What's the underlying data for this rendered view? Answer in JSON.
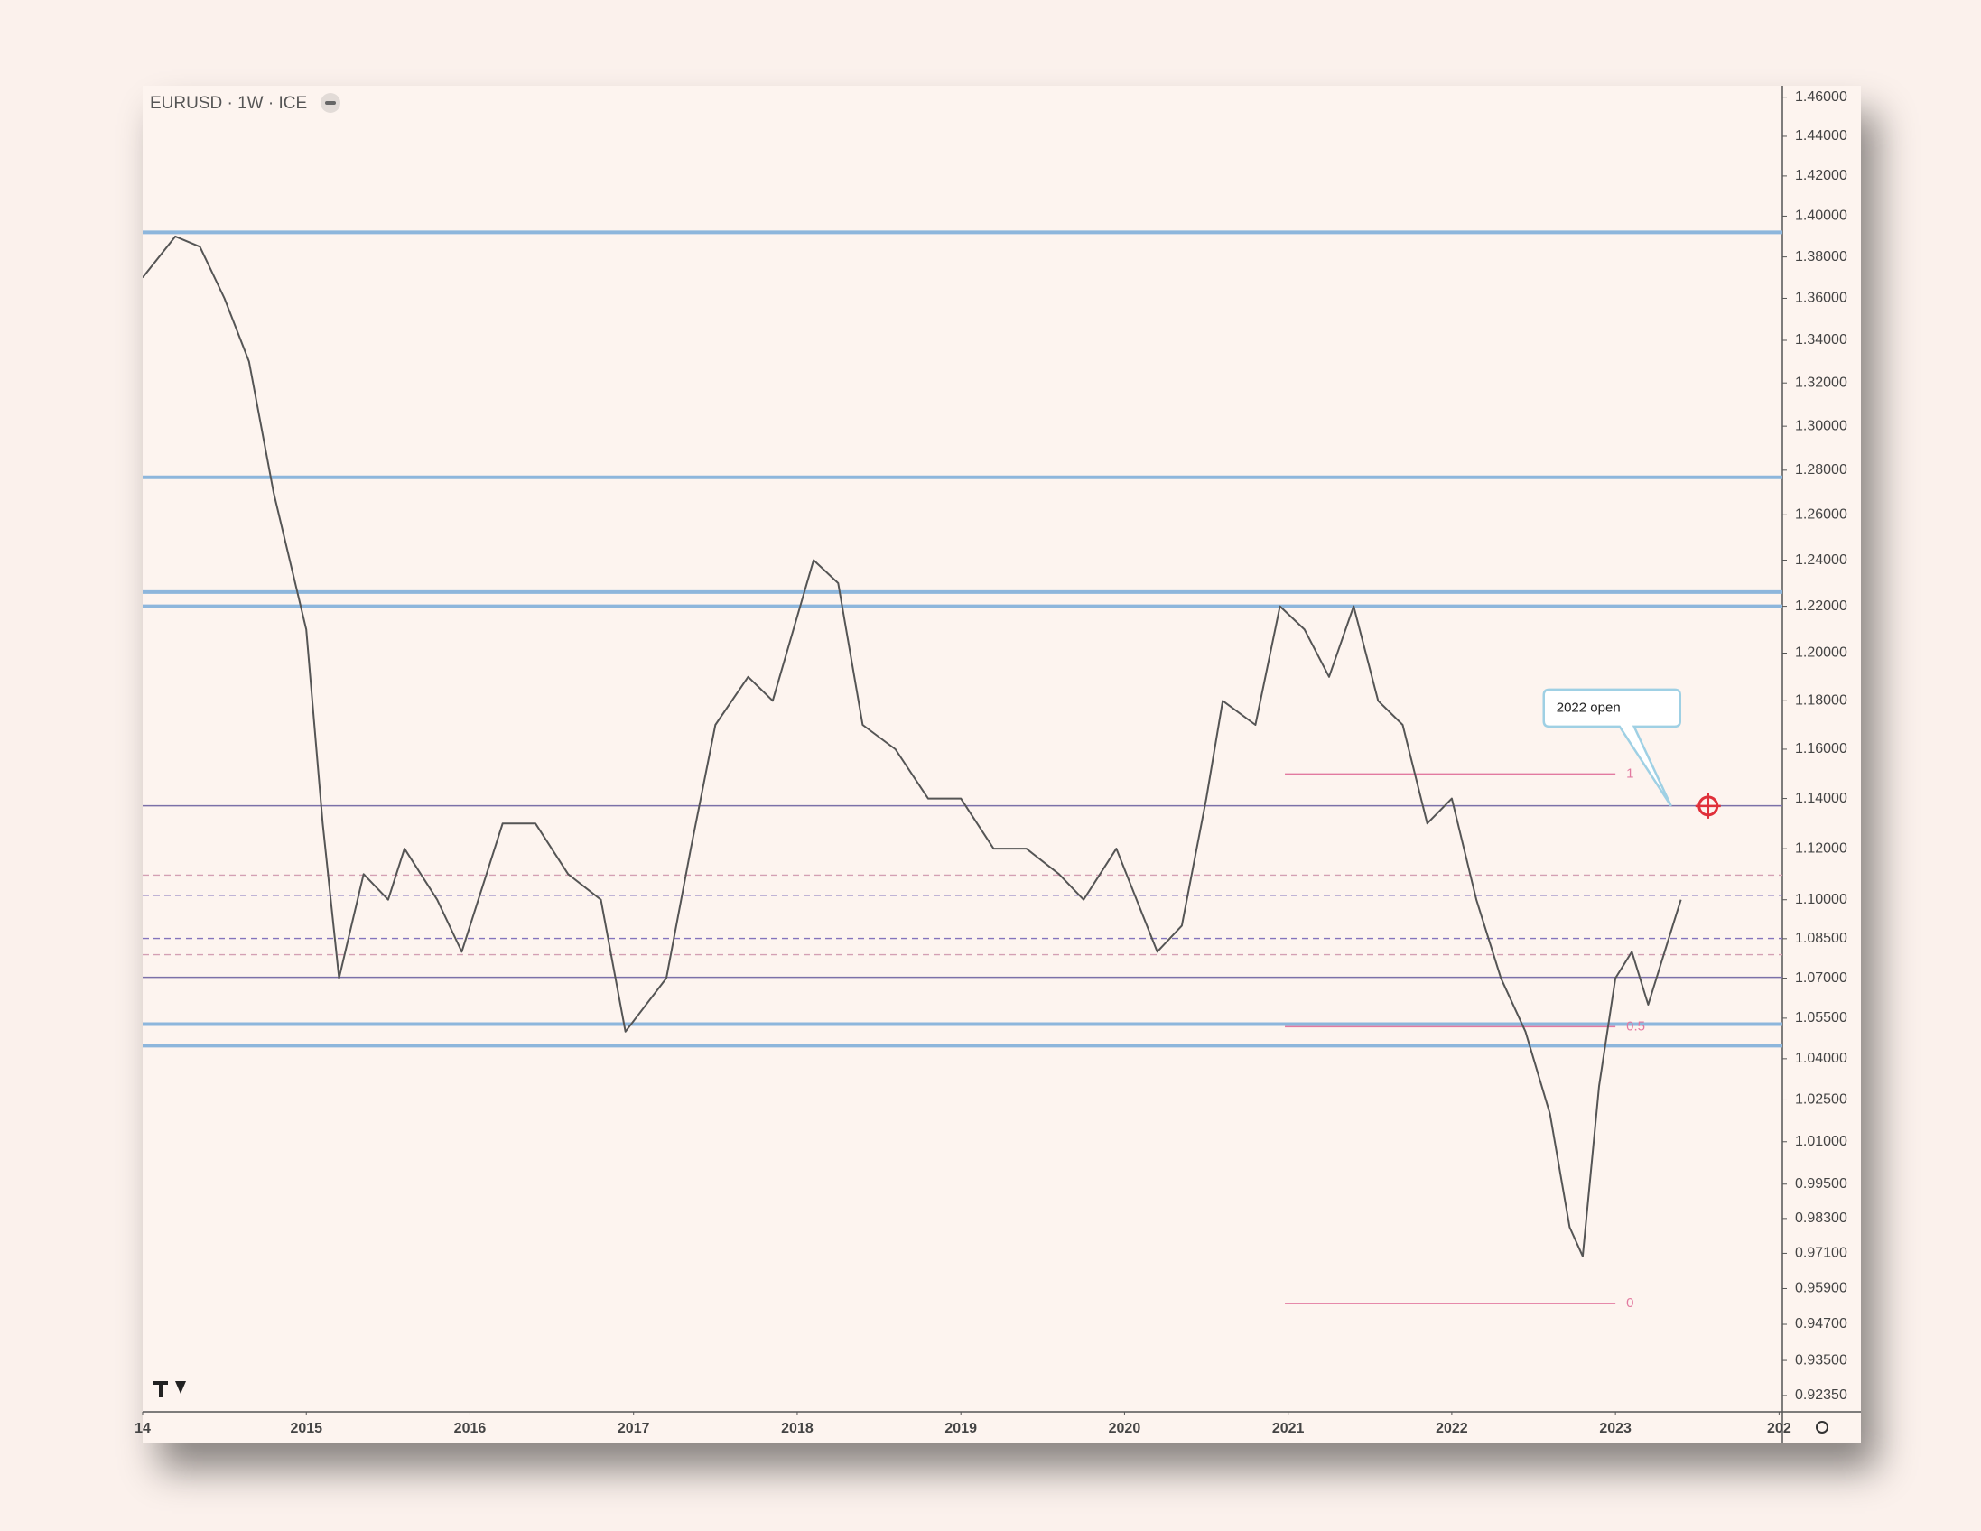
{
  "chart_data": {
    "type": "line",
    "title": "EURUSD · 1W · ICE",
    "log": true,
    "xlim": [
      2014.0,
      2024.02
    ],
    "xticks": [
      {
        "value": 2014,
        "label": "14"
      },
      2015,
      2016,
      2017,
      2018,
      2019,
      2020,
      2021,
      2022,
      2023,
      {
        "value": 2024,
        "label": "202"
      }
    ],
    "ylim": [
      0.9182,
      1.4659
    ],
    "yticks": [
      {
        "value": 1.46,
        "label": "1.46000"
      },
      {
        "value": 1.44,
        "label": "1.44000"
      },
      {
        "value": 1.42,
        "label": "1.42000"
      },
      {
        "value": 1.4,
        "label": "1.40000"
      },
      {
        "value": 1.38,
        "label": "1.38000"
      },
      {
        "value": 1.36,
        "label": "1.36000"
      },
      {
        "value": 1.34,
        "label": "1.34000"
      },
      {
        "value": 1.32,
        "label": "1.32000"
      },
      {
        "value": 1.3,
        "label": "1.30000"
      },
      {
        "value": 1.28,
        "label": "1.28000"
      },
      {
        "value": 1.26,
        "label": "1.26000"
      },
      {
        "value": 1.24,
        "label": "1.24000"
      },
      {
        "value": 1.22,
        "label": "1.22000"
      },
      {
        "value": 1.2,
        "label": "1.20000"
      },
      {
        "value": 1.18,
        "label": "1.18000"
      },
      {
        "value": 1.16,
        "label": "1.16000"
      },
      {
        "value": 1.14,
        "label": "1.14000"
      },
      {
        "value": 1.12,
        "label": "1.12000"
      },
      {
        "value": 1.1,
        "label": "1.10000"
      },
      {
        "value": 1.085,
        "label": "1.08500"
      },
      {
        "value": 1.07,
        "label": "1.07000"
      },
      {
        "value": 1.055,
        "label": "1.05500"
      },
      {
        "value": 1.04,
        "label": "1.04000"
      },
      {
        "value": 1.025,
        "label": "1.02500"
      },
      {
        "value": 1.01,
        "label": "1.01000"
      },
      {
        "value": 0.995,
        "label": "0.99500"
      },
      {
        "value": 0.983,
        "label": "0.98300"
      },
      {
        "value": 0.971,
        "label": "0.97100"
      },
      {
        "value": 0.959,
        "label": "0.95900"
      },
      {
        "value": 0.947,
        "label": "0.94700"
      },
      {
        "value": 0.935,
        "label": "0.93500"
      },
      {
        "value": 0.9235,
        "label": "0.92350"
      }
    ],
    "x": [
      2014.0,
      2014.2,
      2014.35,
      2014.5,
      2014.65,
      2014.8,
      2015.0,
      2015.1,
      2015.2,
      2015.35,
      2015.5,
      2015.6,
      2015.8,
      2015.95,
      2016.2,
      2016.4,
      2016.6,
      2016.8,
      2016.95,
      2017.2,
      2017.35,
      2017.5,
      2017.7,
      2017.85,
      2018.1,
      2018.25,
      2018.4,
      2018.6,
      2018.8,
      2019.0,
      2019.2,
      2019.4,
      2019.6,
      2019.75,
      2019.95,
      2020.2,
      2020.35,
      2020.5,
      2020.6,
      2020.8,
      2020.95,
      2021.1,
      2021.25,
      2021.4,
      2021.55,
      2021.7,
      2021.85,
      2022.0,
      2022.15,
      2022.3,
      2022.45,
      2022.6,
      2022.72,
      2022.8,
      2022.9,
      2023.0,
      2023.1,
      2023.2,
      2023.35,
      2023.4
    ],
    "series": [
      {
        "color": "#555555",
        "values": [
          1.37,
          1.39,
          1.385,
          1.36,
          1.33,
          1.27,
          1.21,
          1.13,
          1.07,
          1.11,
          1.1,
          1.12,
          1.1,
          1.08,
          1.13,
          1.13,
          1.11,
          1.1,
          1.05,
          1.07,
          1.12,
          1.17,
          1.19,
          1.18,
          1.24,
          1.23,
          1.17,
          1.16,
          1.14,
          1.14,
          1.12,
          1.12,
          1.11,
          1.1,
          1.12,
          1.08,
          1.09,
          1.14,
          1.18,
          1.17,
          1.22,
          1.21,
          1.19,
          1.22,
          1.18,
          1.17,
          1.13,
          1.14,
          1.1,
          1.07,
          1.05,
          1.02,
          0.98,
          0.97,
          1.03,
          1.07,
          1.08,
          1.06,
          1.09,
          1.1
        ]
      }
    ],
    "levels": [
      {
        "value": 1.392,
        "color": "#8db6dc",
        "style": "thick"
      },
      {
        "value": 1.2768,
        "color": "#8db6dc",
        "style": "thick"
      },
      {
        "value": 1.2261,
        "color": "#8db6dc",
        "style": "thick"
      },
      {
        "value": 1.22,
        "color": "#8db6dc",
        "style": "thick"
      },
      {
        "value": 1.0528,
        "color": "#8db6dc",
        "style": "thick"
      },
      {
        "value": 1.0448,
        "color": "#8db6dc",
        "style": "thick"
      },
      {
        "value": 1.1371,
        "color": "#7b70a8",
        "style": "thin"
      },
      {
        "value": 1.0703,
        "color": "#7b70a8",
        "style": "thin"
      },
      {
        "value": 1.1096,
        "color": "#d4a0b4",
        "style": "dashed"
      },
      {
        "value": 1.1017,
        "color": "#8474bd",
        "style": "dashed"
      },
      {
        "value": 1.0851,
        "color": "#8474bd",
        "style": "dashed"
      },
      {
        "value": 1.0789,
        "color": "#d4a0b4",
        "style": "dashed"
      }
    ],
    "fib": {
      "color": "#e27aa0",
      "x": [
        2020.98,
        2023.0
      ],
      "levels": [
        {
          "ratio": 1,
          "price": 1.1499
        },
        {
          "ratio": 0.5,
          "price": 1.0518
        },
        {
          "ratio": 0,
          "price": 0.954
        }
      ]
    },
    "annotation": {
      "text": "2022 open",
      "x": 2023.34,
      "price": 1.137
    }
  }
}
